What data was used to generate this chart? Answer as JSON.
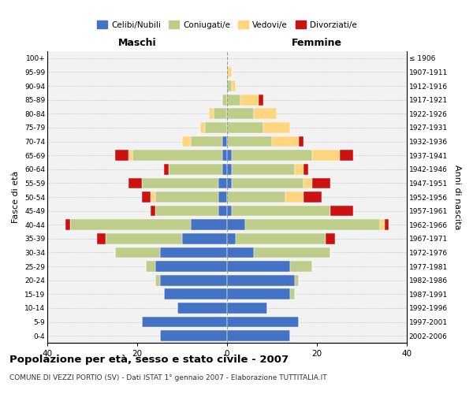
{
  "age_groups": [
    "0-4",
    "5-9",
    "10-14",
    "15-19",
    "20-24",
    "25-29",
    "30-34",
    "35-39",
    "40-44",
    "45-49",
    "50-54",
    "55-59",
    "60-64",
    "65-69",
    "70-74",
    "75-79",
    "80-84",
    "85-89",
    "90-94",
    "95-99",
    "100+"
  ],
  "birth_years": [
    "2002-2006",
    "1997-2001",
    "1992-1996",
    "1987-1991",
    "1982-1986",
    "1977-1981",
    "1972-1976",
    "1967-1971",
    "1962-1966",
    "1957-1961",
    "1952-1956",
    "1947-1951",
    "1942-1946",
    "1937-1941",
    "1932-1936",
    "1927-1931",
    "1922-1926",
    "1917-1921",
    "1912-1916",
    "1907-1911",
    "≤ 1906"
  ],
  "colors": {
    "celibe": "#4472C4",
    "coniugato": "#BFCD8A",
    "vedovo": "#FFD580",
    "divorziato": "#CC1111"
  },
  "maschi": {
    "celibe": [
      15,
      19,
      11,
      14,
      15,
      16,
      15,
      10,
      8,
      2,
      2,
      2,
      1,
      1,
      1,
      0,
      0,
      0,
      0,
      0,
      0
    ],
    "coniugato": [
      0,
      0,
      0,
      0,
      1,
      2,
      10,
      17,
      27,
      14,
      14,
      17,
      12,
      20,
      7,
      5,
      3,
      1,
      0,
      0,
      0
    ],
    "vedovo": [
      0,
      0,
      0,
      0,
      0,
      0,
      0,
      0,
      0,
      0,
      1,
      0,
      0,
      1,
      2,
      1,
      1,
      0,
      0,
      0,
      0
    ],
    "divorziato": [
      0,
      0,
      0,
      0,
      0,
      0,
      0,
      2,
      1,
      1,
      2,
      3,
      1,
      3,
      0,
      0,
      0,
      0,
      0,
      0,
      0
    ]
  },
  "femmine": {
    "nubile": [
      14,
      16,
      9,
      14,
      15,
      14,
      6,
      2,
      4,
      1,
      0,
      1,
      1,
      1,
      0,
      0,
      0,
      0,
      0,
      0,
      0
    ],
    "coniugata": [
      0,
      0,
      0,
      1,
      1,
      5,
      17,
      20,
      30,
      22,
      13,
      16,
      14,
      18,
      10,
      8,
      6,
      3,
      1,
      0,
      0
    ],
    "vedova": [
      0,
      0,
      0,
      0,
      0,
      0,
      0,
      0,
      1,
      0,
      4,
      2,
      2,
      6,
      6,
      6,
      5,
      4,
      1,
      1,
      0
    ],
    "divorziata": [
      0,
      0,
      0,
      0,
      0,
      0,
      0,
      2,
      1,
      5,
      4,
      4,
      1,
      3,
      1,
      0,
      0,
      1,
      0,
      0,
      0
    ]
  },
  "xlim": 40,
  "title": "Popolazione per età, sesso e stato civile - 2007",
  "subtitle": "COMUNE DI VEZZI PORTIO (SV) - Dati ISTAT 1° gennaio 2007 - Elaborazione TUTTITALIA.IT",
  "ylabel_left": "Fasce di età",
  "ylabel_right": "Anni di nascita",
  "xlabel_maschi": "Maschi",
  "xlabel_femmine": "Femmine",
  "legend_labels": [
    "Celibi/Nubili",
    "Coniugati/e",
    "Vedovi/e",
    "Divorziati/e"
  ],
  "bg_color": "#FFFFFF",
  "grid_color": "#CCCCCC",
  "bar_height": 0.78
}
